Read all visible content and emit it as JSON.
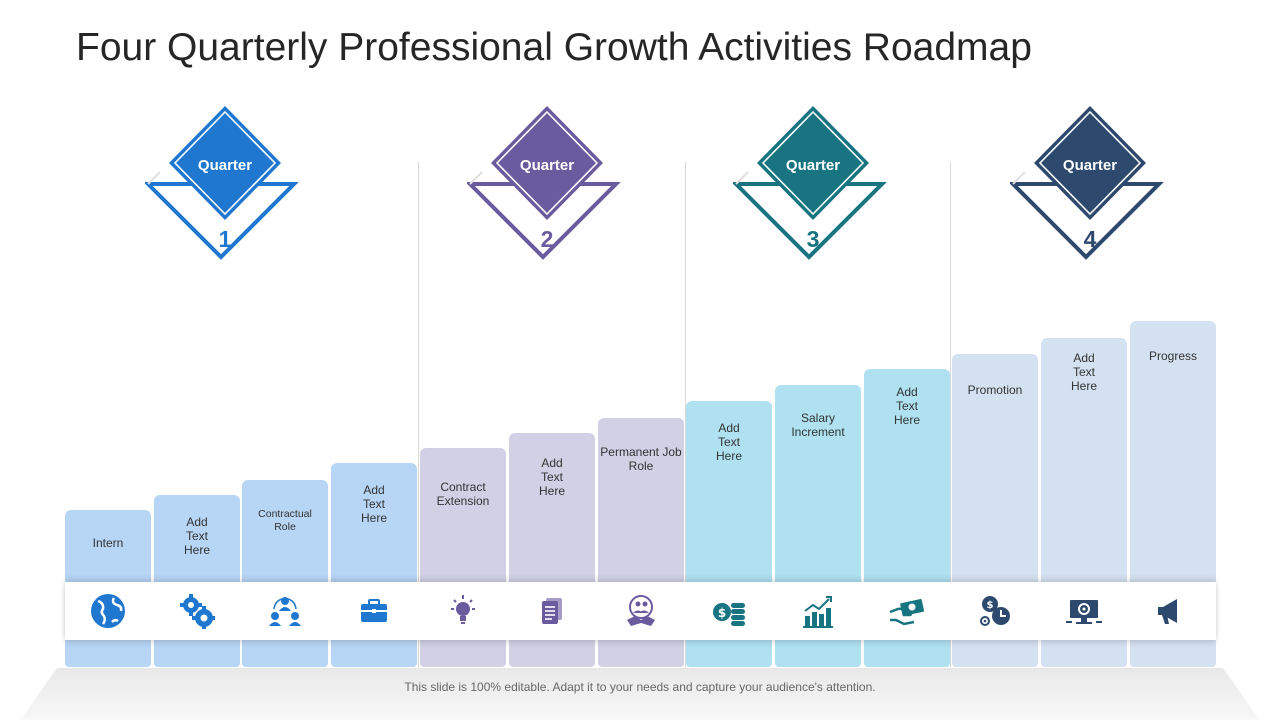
{
  "title": "Four Quarterly Professional Growth Activities Roadmap",
  "quarters": [
    {
      "label": "Quarter",
      "number": "1",
      "color": "#1f77d0"
    },
    {
      "label": "Quarter",
      "number": "2",
      "color": "#6a5a9e"
    },
    {
      "label": "Quarter",
      "number": "3",
      "color": "#177480"
    },
    {
      "label": "Quarter",
      "number": "4",
      "color": "#2d4a6e"
    }
  ],
  "steps": [
    {
      "label": "Intern",
      "icon": "globe-icon"
    },
    {
      "label": "Add\nText\nHere",
      "icon": "gears-icon"
    },
    {
      "label": "Contractual\nRole",
      "icon": "team-icon"
    },
    {
      "label": "Add\nText\nHere",
      "icon": "briefcase-icon"
    },
    {
      "label": "Contract\nExtension",
      "icon": "lightbulb-icon"
    },
    {
      "label": "Add\nText\nHere",
      "icon": "document-icon"
    },
    {
      "label": "Permanent Job\nRole",
      "icon": "handshake-icon"
    },
    {
      "label": "Add\nText\nHere",
      "icon": "coins-icon"
    },
    {
      "label": "Salary\nIncrement",
      "icon": "growth-chart-icon"
    },
    {
      "label": "Add\nText\nHere",
      "icon": "money-hand-icon"
    },
    {
      "label": "Promotion",
      "icon": "time-money-icon"
    },
    {
      "label": "Add\nText\nHere",
      "icon": "monitor-settings-icon"
    },
    {
      "label": "Progress",
      "icon": "megaphone-icon"
    }
  ],
  "step_colors": [
    "#b7d5f5",
    "#d1d0e5",
    "#afe1f1",
    "#d4e1f0"
  ],
  "footer": "This slide is 100% editable. Adapt it to your needs and capture your audience's attention."
}
